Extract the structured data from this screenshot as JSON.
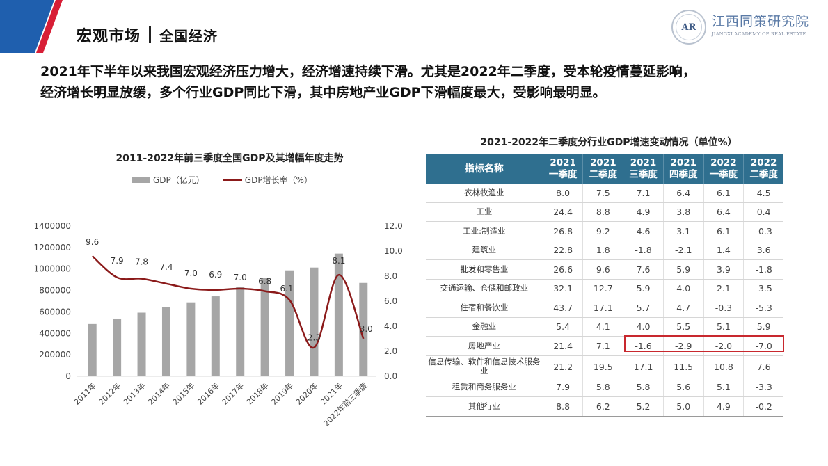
{
  "header": {
    "section": "宏观市场",
    "subsection": "全国经济",
    "brand_color": "#1f5fae",
    "accent_color": "#d81e36"
  },
  "logo": {
    "seal_text": "AR",
    "name_cn": "江西同策研究院",
    "name_en": "JIANGXI ACADEMY OF REAL ESTATE"
  },
  "intro": {
    "line1": "2021年下半年以来我国宏观经济压力增大，经济增速持续下滑。尤其是2022年二季度，受本轮疫情蔓延影响，",
    "line2": "经济增长明显放缓，多个行业GDP同比下滑，其中房地产业GDP下滑幅度最大，受影响最明显。"
  },
  "chart_data": [
    {
      "type": "bar+line",
      "title": "2011-2022年前三季度全国GDP及其增幅年度走势",
      "categories": [
        "2011年",
        "2012年",
        "2013年",
        "2014年",
        "2015年",
        "2016年",
        "2017年",
        "2018年",
        "2019年",
        "2020年",
        "2021年",
        "2022年前三季度"
      ],
      "series": [
        {
          "name": "GDP（亿元）",
          "type": "bar",
          "axis": "left",
          "color": "#a6a6a6",
          "values": [
            487000,
            538000,
            593000,
            643000,
            689000,
            745000,
            833000,
            914000,
            987000,
            1013000,
            1143000,
            870000
          ]
        },
        {
          "name": "GDP增长率（%）",
          "type": "line",
          "axis": "right",
          "color": "#8b1a1a",
          "values": [
            9.6,
            7.9,
            7.8,
            7.4,
            7.0,
            6.9,
            7.0,
            6.8,
            6.1,
            2.3,
            8.1,
            3.0
          ],
          "labels": [
            "9.6",
            "7.9",
            "7.8",
            "7.4",
            "7.0",
            "6.9",
            "7.0",
            "6.8",
            "6.1",
            "2.3",
            "8.1",
            "3.0"
          ]
        }
      ],
      "left_axis": {
        "ticks": [
          "0",
          "200000",
          "400000",
          "600000",
          "800000",
          "1000000",
          "1200000",
          "1400000"
        ],
        "ylim": [
          0,
          1400000
        ]
      },
      "right_axis": {
        "ticks": [
          "0.0",
          "2.0",
          "4.0",
          "6.0",
          "8.0",
          "10.0",
          "12.0"
        ],
        "ylim": [
          0,
          12
        ]
      },
      "legend_position": "top",
      "grid": false
    },
    {
      "type": "table",
      "title": "2021-2022年二季度分行业GDP增速变动情况（单位%）",
      "columns": [
        "指标名称",
        "2021 一季度",
        "2021 二季度",
        "2021 三季度",
        "2021 四季度",
        "2022 一季度",
        "2022 二季度"
      ],
      "rows": [
        [
          "农林牧渔业",
          8.0,
          7.5,
          7.1,
          6.4,
          6.1,
          4.5
        ],
        [
          "工业",
          24.4,
          8.8,
          4.9,
          3.8,
          6.4,
          0.4
        ],
        [
          "工业:制造业",
          26.8,
          9.2,
          4.6,
          3.1,
          6.1,
          -0.3
        ],
        [
          "建筑业",
          22.8,
          1.8,
          -1.8,
          -2.1,
          1.4,
          3.6
        ],
        [
          "批发和零售业",
          26.6,
          9.6,
          7.6,
          5.9,
          3.9,
          -1.8
        ],
        [
          "交通运输、仓储和邮政业",
          32.1,
          12.7,
          5.9,
          4.0,
          2.1,
          -3.5
        ],
        [
          "住宿和餐饮业",
          43.7,
          17.1,
          5.7,
          4.7,
          -0.3,
          -5.3
        ],
        [
          "金融业",
          5.4,
          4.1,
          4.0,
          5.5,
          5.1,
          5.9
        ],
        [
          "房地产业",
          21.4,
          7.1,
          -1.6,
          -2.9,
          -2.0,
          -7.0
        ],
        [
          "信息传输、软件和信息技术服务业",
          21.2,
          19.5,
          17.1,
          11.5,
          10.8,
          7.6
        ],
        [
          "租赁和商务服务业",
          7.9,
          5.8,
          5.8,
          5.6,
          5.1,
          -3.3
        ],
        [
          "其他行业",
          8.8,
          6.2,
          5.2,
          5.0,
          4.9,
          -0.2
        ]
      ],
      "highlight": {
        "row": "房地产业",
        "columns": [
          "2021 三季度",
          "2021 四季度",
          "2022 一季度",
          "2022 二季度"
        ],
        "color": "#c8282e"
      }
    }
  ],
  "gdp_chart": {
    "title": "2011-2022年前三季度全国GDP及其增幅年度走势",
    "legend_bar": "GDP（亿元）",
    "legend_line": "GDP增长率（%）"
  },
  "industry_table": {
    "title": "2021-2022年二季度分行业GDP增速变动情况（单位%）",
    "header_name": "指标名称",
    "header_cols": [
      {
        "year": "2021",
        "quarter": "一季度"
      },
      {
        "year": "2021",
        "quarter": "二季度"
      },
      {
        "year": "2021",
        "quarter": "三季度"
      },
      {
        "year": "2021",
        "quarter": "四季度"
      },
      {
        "year": "2022",
        "quarter": "一季度"
      },
      {
        "year": "2022",
        "quarter": "二季度"
      }
    ],
    "rows": [
      {
        "name": "农林牧渔业",
        "v": [
          "8.0",
          "7.5",
          "7.1",
          "6.4",
          "6.1",
          "4.5"
        ]
      },
      {
        "name": "工业",
        "v": [
          "24.4",
          "8.8",
          "4.9",
          "3.8",
          "6.4",
          "0.4"
        ]
      },
      {
        "name": "工业:制造业",
        "v": [
          "26.8",
          "9.2",
          "4.6",
          "3.1",
          "6.1",
          "-0.3"
        ]
      },
      {
        "name": "建筑业",
        "v": [
          "22.8",
          "1.8",
          "-1.8",
          "-2.1",
          "1.4",
          "3.6"
        ]
      },
      {
        "name": "批发和零售业",
        "v": [
          "26.6",
          "9.6",
          "7.6",
          "5.9",
          "3.9",
          "-1.8"
        ]
      },
      {
        "name": "交通运输、仓储和邮政业",
        "v": [
          "32.1",
          "12.7",
          "5.9",
          "4.0",
          "2.1",
          "-3.5"
        ]
      },
      {
        "name": "住宿和餐饮业",
        "v": [
          "43.7",
          "17.1",
          "5.7",
          "4.7",
          "-0.3",
          "-5.3"
        ]
      },
      {
        "name": "金融业",
        "v": [
          "5.4",
          "4.1",
          "4.0",
          "5.5",
          "5.1",
          "5.9"
        ]
      },
      {
        "name": "房地产业",
        "v": [
          "21.4",
          "7.1",
          "-1.6",
          "-2.9",
          "-2.0",
          "-7.0"
        ]
      },
      {
        "name": "信息传输、软件和信息技术服务业",
        "v": [
          "21.2",
          "19.5",
          "17.1",
          "11.5",
          "10.8",
          "7.6"
        ]
      },
      {
        "name": "租赁和商务服务业",
        "v": [
          "7.9",
          "5.8",
          "5.8",
          "5.6",
          "5.1",
          "-3.3"
        ]
      },
      {
        "name": "其他行业",
        "v": [
          "8.8",
          "6.2",
          "5.2",
          "5.0",
          "4.9",
          "-0.2"
        ]
      }
    ]
  }
}
